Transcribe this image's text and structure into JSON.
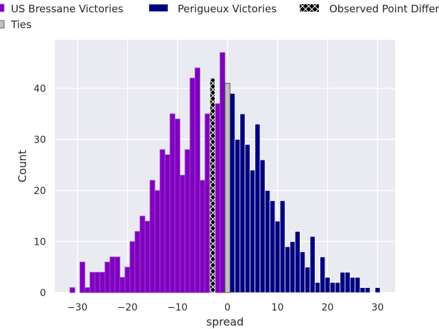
{
  "chart_data": {
    "type": "bar",
    "title": "",
    "xlabel": "spread",
    "ylabel": "Count",
    "xlim": [
      -34.5,
      33.5
    ],
    "ylim": [
      0,
      49.5
    ],
    "x_ticks": [
      -30,
      -20,
      -10,
      0,
      10,
      20,
      30
    ],
    "x_tick_labels": [
      "−30",
      "−20",
      "−10",
      "0",
      "10",
      "20",
      "30"
    ],
    "y_ticks": [
      0,
      10,
      20,
      30,
      40
    ],
    "y_tick_labels": [
      "0",
      "10",
      "20",
      "30",
      "40"
    ],
    "grid": true,
    "legend_position": "top",
    "bin_width": 1,
    "series": [
      {
        "name": "US Bressane Victories",
        "color": "#8000C0",
        "edge_color": "#A050D0",
        "x": [
          -31,
          -29,
          -28,
          -27,
          -26,
          -25,
          -24,
          -23,
          -22,
          -21,
          -20,
          -19,
          -18,
          -17,
          -16,
          -15,
          -14,
          -13,
          -12,
          -11,
          -10,
          -9,
          -8,
          -7,
          -6,
          -5,
          -4,
          -2,
          -1
        ],
        "values": [
          1,
          6,
          1,
          4,
          4,
          4,
          6,
          7,
          7,
          3,
          5,
          10,
          12,
          15,
          14,
          22,
          20,
          28,
          27,
          35,
          34,
          23,
          28,
          42,
          44,
          22,
          35,
          37,
          47
        ]
      },
      {
        "name": "Perigueux Victories",
        "color": "#000080",
        "edge_color": "#ffffff",
        "x": [
          1,
          2,
          3,
          4,
          5,
          6,
          7,
          8,
          9,
          10,
          11,
          12,
          13,
          14,
          15,
          16,
          17,
          18,
          19,
          20,
          21,
          22,
          23,
          24,
          25,
          26,
          27,
          28,
          30
        ],
        "values": [
          39,
          30,
          35,
          29,
          24,
          33,
          26,
          20,
          18,
          14,
          18,
          9,
          10,
          12,
          8,
          5,
          11,
          2,
          7,
          3,
          2,
          2,
          4,
          4,
          3,
          3,
          1,
          1,
          1
        ]
      },
      {
        "name": "Observed Point Differential",
        "color": "#000000",
        "hatch": true,
        "x": [
          -3
        ],
        "values": [
          42
        ]
      },
      {
        "name": "Ties",
        "color": "#C0C0C0",
        "edge_color": "#404040",
        "x": [
          0
        ],
        "values": [
          41
        ]
      }
    ]
  }
}
